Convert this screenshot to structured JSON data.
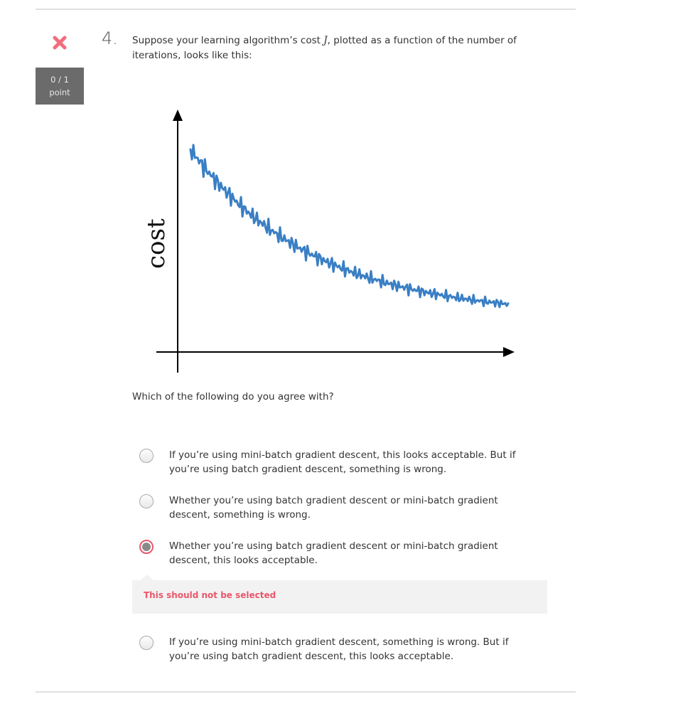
{
  "question": {
    "number": "4.",
    "text_before_math": "Suppose your learning algorithm’s cost ",
    "math_symbol": "J",
    "text_after_math": ", plotted as a function of the number of iterations, looks like this:",
    "prompt": "Which of the following do you agree with?"
  },
  "status": {
    "icon": "red-x-icon",
    "score": "0 / 1",
    "score_unit": "point"
  },
  "figure": {
    "y_axis_label": "cost"
  },
  "options": [
    {
      "label": "If you’re using mini-batch gradient descent, this looks acceptable. But if you’re using batch gradient descent, something is wrong.",
      "selected": false
    },
    {
      "label": "Whether you’re using batch gradient descent or mini-batch gradient descent, something is wrong.",
      "selected": false
    },
    {
      "label": "Whether you’re using batch gradient descent or mini-batch gradient descent, this looks acceptable.",
      "selected": true
    },
    {
      "label": "If you’re using mini-batch gradient descent, something is wrong. But if you’re using batch gradient descent, this looks acceptable.",
      "selected": false
    }
  ],
  "feedback": {
    "text": "This should not be selected"
  },
  "colors": {
    "error": "#e9576a",
    "curve": "#3a7fc4",
    "score_bg": "#6b6b6b"
  }
}
